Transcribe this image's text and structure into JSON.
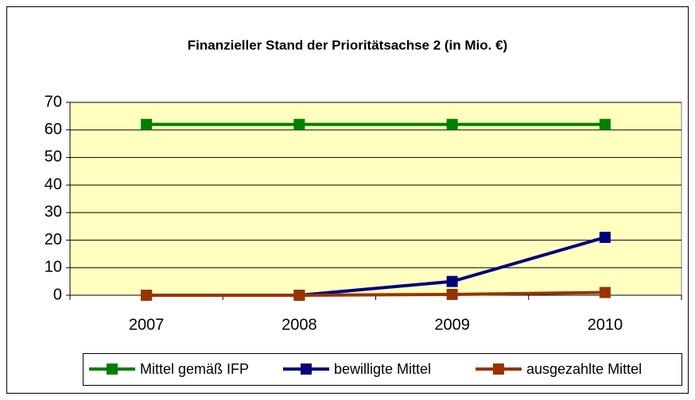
{
  "chart_data": {
    "type": "line",
    "title": "Finanzieller Stand der Prioritätsachse 2 (in Mio. €)",
    "categories": [
      "2007",
      "2008",
      "2009",
      "2010"
    ],
    "series": [
      {
        "name": "Mittel gemäß IFP",
        "color": "#008000",
        "values": [
          62,
          62,
          62,
          62
        ]
      },
      {
        "name": "bewilligte Mittel",
        "color": "#000080",
        "values": [
          0,
          0,
          5,
          21
        ]
      },
      {
        "name": "ausgezahlte Mittel",
        "color": "#993300",
        "values": [
          0,
          0,
          0.3,
          1
        ]
      }
    ],
    "ylim": [
      0,
      70
    ],
    "yticks": [
      0,
      10,
      20,
      30,
      40,
      50,
      60,
      70
    ],
    "grid": true,
    "legend": "bottom"
  }
}
